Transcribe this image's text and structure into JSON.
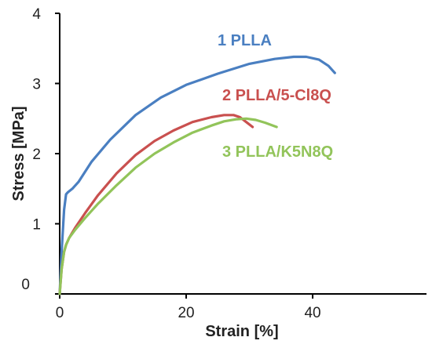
{
  "chart_data": {
    "type": "line",
    "xlabel": "Strain [%]",
    "ylabel": "Stress [MPa]",
    "xlim": [
      0,
      58
    ],
    "ylim": [
      0,
      4
    ],
    "xticks": [
      0,
      20,
      40
    ],
    "yticks": [
      0,
      1,
      2,
      3,
      4
    ],
    "grid": false,
    "series": [
      {
        "name": "1 PLLA",
        "color": "#4a7fc1",
        "x": [
          0,
          0.3,
          0.7,
          1.0,
          1.3,
          2.0,
          3,
          5,
          8,
          12,
          16,
          20,
          25,
          30,
          34,
          37,
          39,
          41,
          42.5,
          43.5
        ],
        "y": [
          0,
          0.6,
          1.2,
          1.42,
          1.45,
          1.5,
          1.6,
          1.88,
          2.2,
          2.55,
          2.8,
          2.98,
          3.14,
          3.28,
          3.35,
          3.38,
          3.38,
          3.34,
          3.25,
          3.15
        ]
      },
      {
        "name": "2 PLLA/5-Cl8Q",
        "color": "#c9504f",
        "x": [
          0,
          0.3,
          0.7,
          1.0,
          1.5,
          2.5,
          4,
          6,
          9,
          12,
          15,
          18,
          21,
          24,
          26,
          27.5,
          28.5,
          29.5,
          30.5
        ],
        "y": [
          0,
          0.35,
          0.6,
          0.7,
          0.8,
          0.95,
          1.15,
          1.4,
          1.72,
          1.98,
          2.18,
          2.33,
          2.45,
          2.52,
          2.55,
          2.55,
          2.52,
          2.45,
          2.38
        ]
      },
      {
        "name": "3 PLLA/K5N8Q",
        "color": "#92c45a",
        "x": [
          0,
          0.3,
          0.7,
          1.0,
          1.5,
          2.5,
          4,
          6,
          9,
          12,
          15,
          18,
          21,
          24,
          26,
          28,
          29.5,
          31,
          32.5,
          34.3
        ],
        "y": [
          0,
          0.35,
          0.6,
          0.7,
          0.8,
          0.92,
          1.08,
          1.28,
          1.55,
          1.8,
          2.0,
          2.16,
          2.3,
          2.4,
          2.46,
          2.49,
          2.5,
          2.48,
          2.44,
          2.38
        ]
      }
    ]
  }
}
